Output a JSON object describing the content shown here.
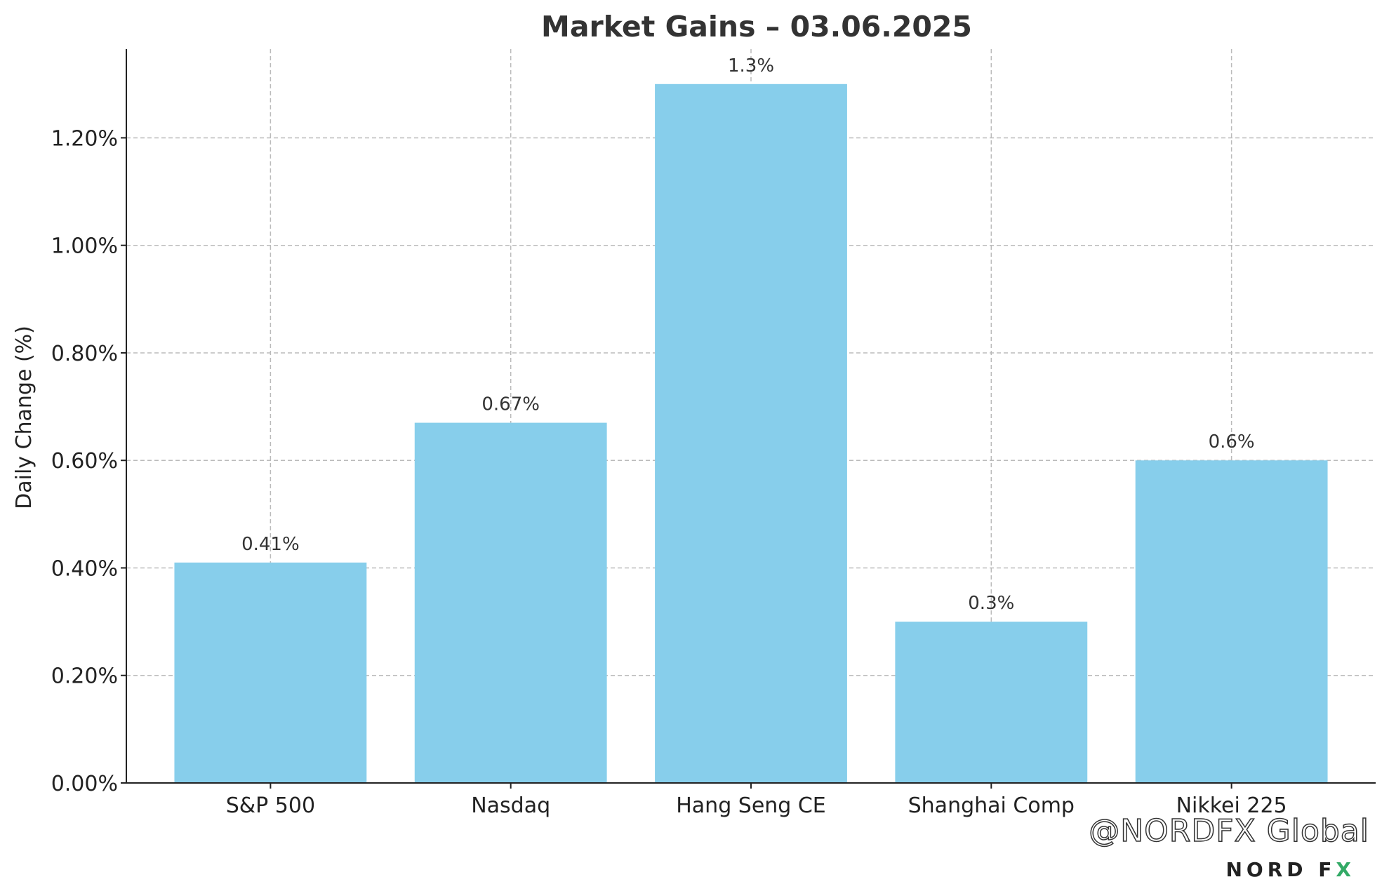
{
  "chart_data": {
    "type": "bar",
    "title": "Market Gains – 03.06.2025",
    "xlabel": "",
    "ylabel": "Daily Change (%)",
    "categories": [
      "S&P 500",
      "Nasdaq",
      "Hang Seng CE",
      "Shanghai Comp",
      "Nikkei 225"
    ],
    "values": [
      0.41,
      0.67,
      1.3,
      0.3,
      0.6
    ],
    "value_labels": [
      "0.41%",
      "0.67%",
      "1.3%",
      "0.3%",
      "0.6%"
    ],
    "ylim": [
      0,
      1.365
    ],
    "yticks": [
      0.0,
      0.2,
      0.4,
      0.6,
      0.8,
      1.0,
      1.2
    ],
    "ytick_labels": [
      "0.00%",
      "0.20%",
      "0.40%",
      "0.60%",
      "0.80%",
      "1.00%",
      "1.20%"
    ],
    "grid": true,
    "bar_color": "#87CEEB"
  },
  "watermark": {
    "handle": "@NORDFX Global",
    "brand_main": "NORD F",
    "brand_x": "X"
  }
}
